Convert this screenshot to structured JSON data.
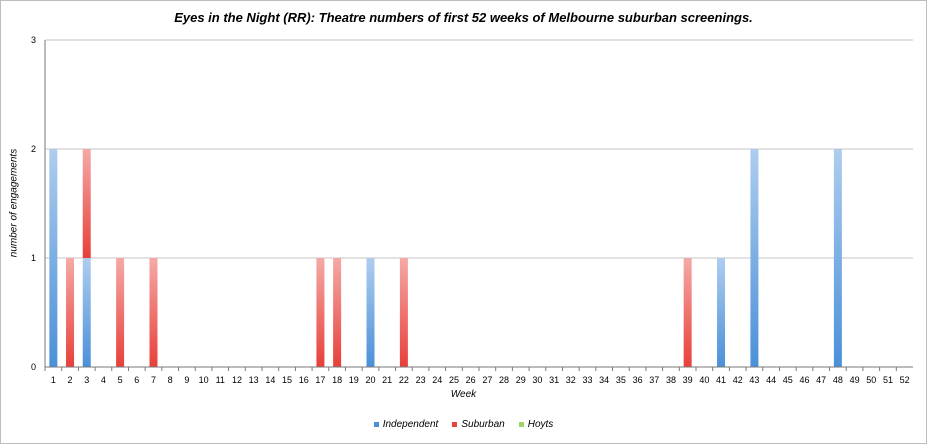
{
  "chart_data": {
    "type": "bar",
    "stacked": true,
    "title": "Eyes in the Night (RR): Theatre numbers of first 52 weeks of Melbourne suburban screenings.",
    "xlabel": "Week",
    "ylabel": "number of engagements",
    "ylim": [
      0,
      3
    ],
    "yticks": [
      "0",
      "1",
      "2",
      "3"
    ],
    "grid": true,
    "legend_position": "bottom",
    "categories": [
      "1",
      "2",
      "3",
      "4",
      "5",
      "6",
      "7",
      "8",
      "9",
      "10",
      "11",
      "12",
      "13",
      "14",
      "15",
      "16",
      "17",
      "18",
      "19",
      "20",
      "21",
      "22",
      "23",
      "24",
      "25",
      "26",
      "27",
      "28",
      "29",
      "30",
      "31",
      "32",
      "33",
      "34",
      "35",
      "36",
      "37",
      "38",
      "39",
      "40",
      "41",
      "42",
      "43",
      "44",
      "45",
      "46",
      "47",
      "48",
      "49",
      "50",
      "51",
      "52"
    ],
    "series": [
      {
        "name": "Independent",
        "color": "#4a90d9",
        "values": [
          2,
          0,
          1,
          0,
          0,
          0,
          0,
          0,
          0,
          0,
          0,
          0,
          0,
          0,
          0,
          0,
          0,
          0,
          0,
          1,
          0,
          0,
          0,
          0,
          0,
          0,
          0,
          0,
          0,
          0,
          0,
          0,
          0,
          0,
          0,
          0,
          0,
          0,
          0,
          0,
          1,
          0,
          2,
          0,
          0,
          0,
          0,
          2,
          0,
          0,
          0,
          0
        ]
      },
      {
        "name": "Suburban",
        "color": "#e8403a",
        "values": [
          0,
          1,
          1,
          0,
          1,
          0,
          1,
          0,
          0,
          0,
          0,
          0,
          0,
          0,
          0,
          0,
          1,
          1,
          0,
          0,
          0,
          1,
          0,
          0,
          0,
          0,
          0,
          0,
          0,
          0,
          0,
          0,
          0,
          0,
          0,
          0,
          0,
          0,
          1,
          0,
          0,
          0,
          0,
          0,
          0,
          0,
          0,
          0,
          0,
          0,
          0,
          0
        ]
      },
      {
        "name": "Hoyts",
        "color": "#9ed36a",
        "values": [
          0,
          0,
          0,
          0,
          0,
          0,
          0,
          0,
          0,
          0,
          0,
          0,
          0,
          0,
          0,
          0,
          0,
          0,
          0,
          0,
          0,
          0,
          0,
          0,
          0,
          0,
          0,
          0,
          0,
          0,
          0,
          0,
          0,
          0,
          0,
          0,
          0,
          0,
          0,
          0,
          0,
          0,
          0,
          0,
          0,
          0,
          0,
          0,
          0,
          0,
          0,
          0
        ]
      }
    ]
  }
}
